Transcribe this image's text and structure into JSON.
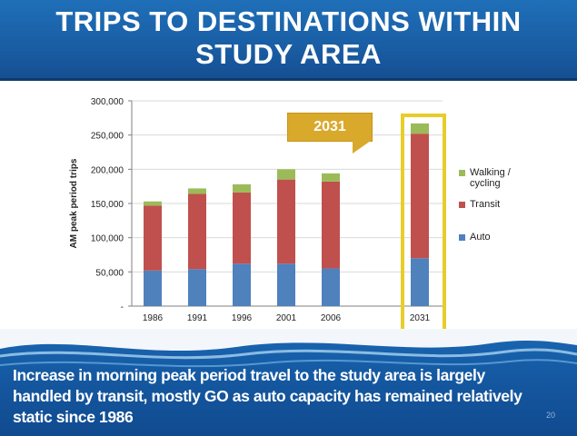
{
  "slide": {
    "title_line1": "TRIPS TO DESTINATIONS WITHIN",
    "title_line2": "STUDY AREA",
    "caption": "Increase in morning peak period travel to the study area is largely handled by transit, mostly GO as auto capacity has remained relatively static since 1986",
    "page_number": "20",
    "callout": "2031"
  },
  "colors": {
    "Auto": "#4f81bd",
    "Transit": "#c0504d",
    "Walking / cycling": "#9bbb59",
    "header": "#1a5fa6",
    "callout": "#d9a92c",
    "highlight": "#e8cd2a"
  },
  "chart_data": {
    "type": "bar",
    "stacked": true,
    "categories": [
      "1986",
      "1991",
      "1996",
      "2001",
      "2006",
      "2031"
    ],
    "series": [
      {
        "name": "Auto",
        "values": [
          52000,
          54000,
          62000,
          62000,
          55000,
          70000
        ]
      },
      {
        "name": "Transit",
        "values": [
          95000,
          110000,
          104000,
          123000,
          127000,
          182000
        ]
      },
      {
        "name": "Walking / cycling",
        "values": [
          6000,
          8000,
          12000,
          15000,
          12000,
          15000
        ]
      }
    ],
    "ylabel": "AM peak period trips",
    "ylim": [
      0,
      300000
    ],
    "yticks": [
      0,
      50000,
      100000,
      150000,
      200000,
      250000,
      300000
    ],
    "ytick_labels": [
      "-",
      "50,000",
      "100,000",
      "150,000",
      "200,000",
      "250,000",
      "300,000"
    ],
    "grid": true,
    "legend": "right",
    "legend_entries": [
      {
        "name": "Walking / cycling",
        "label_line1": "Walking /",
        "label_line2": "cycling"
      },
      {
        "name": "Transit",
        "label_line1": "Transit",
        "label_line2": ""
      },
      {
        "name": "Auto",
        "label_line1": "Auto",
        "label_line2": ""
      }
    ]
  }
}
